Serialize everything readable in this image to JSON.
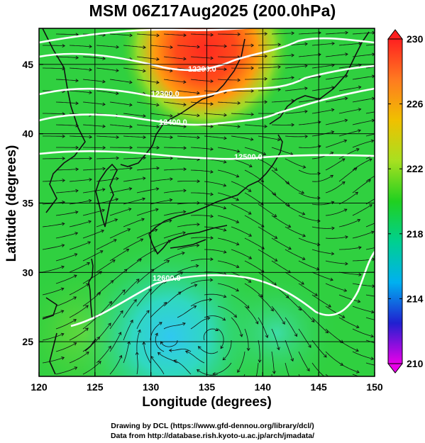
{
  "title": "MSM 06Z17Aug2025 (200.0hPa)",
  "xlabel": "Longitude (degrees)",
  "ylabel": "Latitude  (degrees)",
  "credits": [
    "Drawing by DCL (https://www.gfd-dennou.org/library/dcl/)",
    "Data from http://database.rish.kyoto-u.ac.jp/arch/jmadata/"
  ],
  "map": {
    "lon_range": [
      120,
      150
    ],
    "lat_range": [
      22.5,
      47.6
    ],
    "x_ticks": [
      "120",
      "125",
      "130",
      "135",
      "140",
      "145",
      "150"
    ],
    "y_ticks": [
      "25",
      "30",
      "35",
      "40",
      "45"
    ],
    "grid": true
  },
  "colorbar": {
    "min": 210,
    "max": 230,
    "ticks": [
      "230",
      "226",
      "222",
      "218",
      "214",
      "210"
    ],
    "stops": [
      "#e800e8",
      "#2020d0",
      "#00b0f0",
      "#00d090",
      "#20d020",
      "#a8e020",
      "#f0c000",
      "#ff7a20",
      "#ff2020"
    ]
  },
  "contours": {
    "labels": [
      "12200.0",
      "12300.0",
      "12400.0",
      "12500.0",
      "12600.0"
    ]
  }
}
